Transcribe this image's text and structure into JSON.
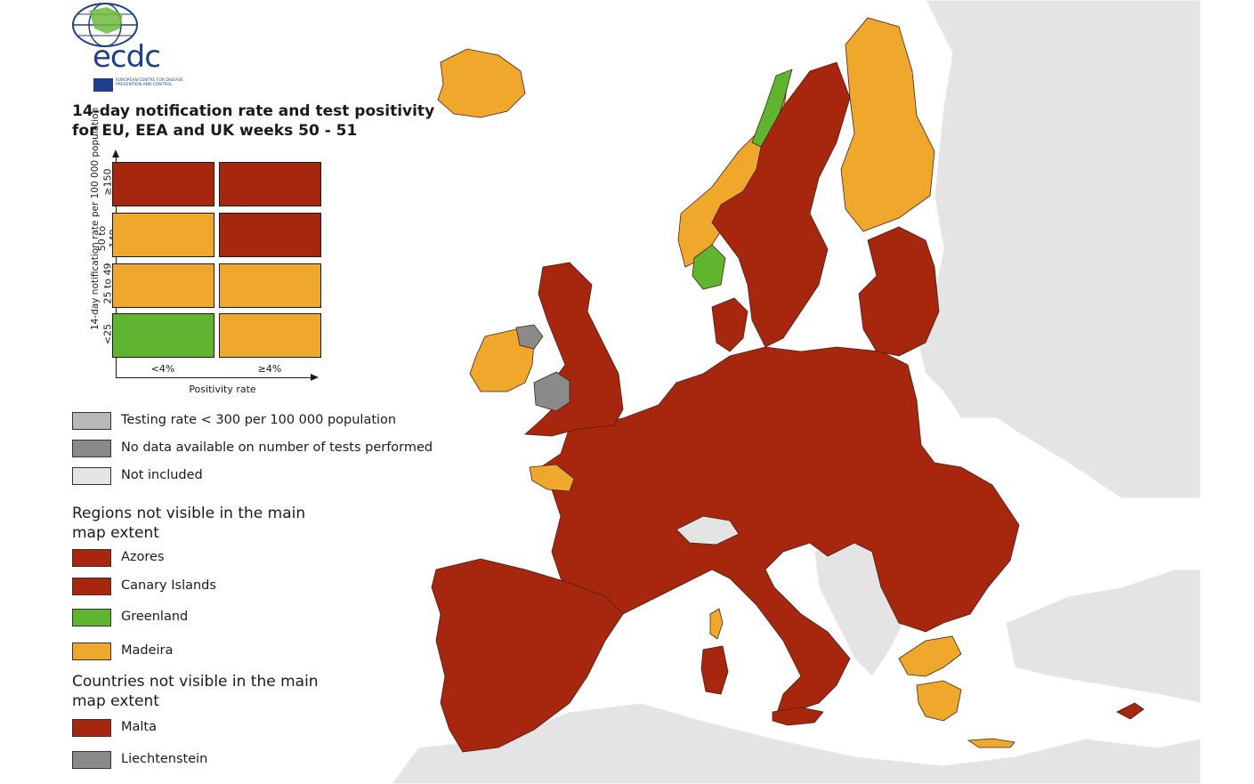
{
  "colors": {
    "sea": "#ffffff",
    "not_included": "#e4e4e4",
    "no_data": "#8a8a8a",
    "low_testing": "#b8b8b8",
    "red": "#a6260e",
    "orange": "#f0a82c",
    "green": "#5fb52f",
    "border": "#5a2a20"
  },
  "logo": {
    "wordmark": "ecdc",
    "subtitle": "EUROPEAN CENTRE FOR DISEASE PREVENTION AND CONTROL"
  },
  "title": "14-day notification rate and test positivity for EU, EEA and UK weeks 50 - 51",
  "matrix": {
    "y_axis_label": "14-day notification rate per 100 000 population",
    "x_axis_label": "Positivity rate",
    "x_ticks": [
      "<4%",
      "≥4%"
    ],
    "y_ticks": [
      "≥150",
      "50 to 149",
      "25 to 49",
      "<25"
    ],
    "cells": [
      [
        "red",
        "red"
      ],
      [
        "orange",
        "red"
      ],
      [
        "orange",
        "orange"
      ],
      [
        "green",
        "orange"
      ]
    ]
  },
  "legend": {
    "special": [
      {
        "label": "Testing rate < 300 per 100 000 population",
        "color": "low_testing"
      },
      {
        "label": "No data available on number of tests performed",
        "color": "no_data"
      },
      {
        "label": "Not included",
        "color": "not_included"
      }
    ],
    "regions_heading": "Regions not visible in the main map extent",
    "regions": [
      {
        "label": "Azores",
        "color": "red"
      },
      {
        "label": "Canary Islands",
        "color": "red"
      },
      {
        "label": "Greenland",
        "color": "green"
      },
      {
        "label": "Madeira",
        "color": "orange"
      }
    ],
    "countries_heading": "Countries not visible in the main map extent",
    "countries": [
      {
        "label": "Malta",
        "color": "red"
      },
      {
        "label": "Liechtenstein",
        "color": "no_data"
      }
    ]
  },
  "map_regions": [
    {
      "name": "iceland",
      "status": "orange"
    },
    {
      "name": "ireland",
      "status": "orange"
    },
    {
      "name": "northern-ireland",
      "status": "no_data"
    },
    {
      "name": "great-britain",
      "status": "red"
    },
    {
      "name": "wales",
      "status": "no_data"
    },
    {
      "name": "norway-north",
      "status": "green"
    },
    {
      "name": "norway-mid",
      "status": "orange"
    },
    {
      "name": "norway-south",
      "status": "green"
    },
    {
      "name": "sweden",
      "status": "red"
    },
    {
      "name": "finland",
      "status": "orange"
    },
    {
      "name": "baltics",
      "status": "red"
    },
    {
      "name": "denmark",
      "status": "red"
    },
    {
      "name": "continental-europe",
      "status": "red"
    },
    {
      "name": "brittany",
      "status": "orange"
    },
    {
      "name": "switzerland",
      "status": "not_included"
    },
    {
      "name": "balkans",
      "status": "not_included"
    },
    {
      "name": "iberia",
      "status": "red"
    },
    {
      "name": "corsica",
      "status": "orange"
    },
    {
      "name": "sardinia",
      "status": "red"
    },
    {
      "name": "sicily",
      "status": "red"
    },
    {
      "name": "greece-north",
      "status": "orange"
    },
    {
      "name": "greece-south",
      "status": "orange"
    },
    {
      "name": "crete",
      "status": "orange"
    },
    {
      "name": "cyprus",
      "status": "red"
    }
  ]
}
